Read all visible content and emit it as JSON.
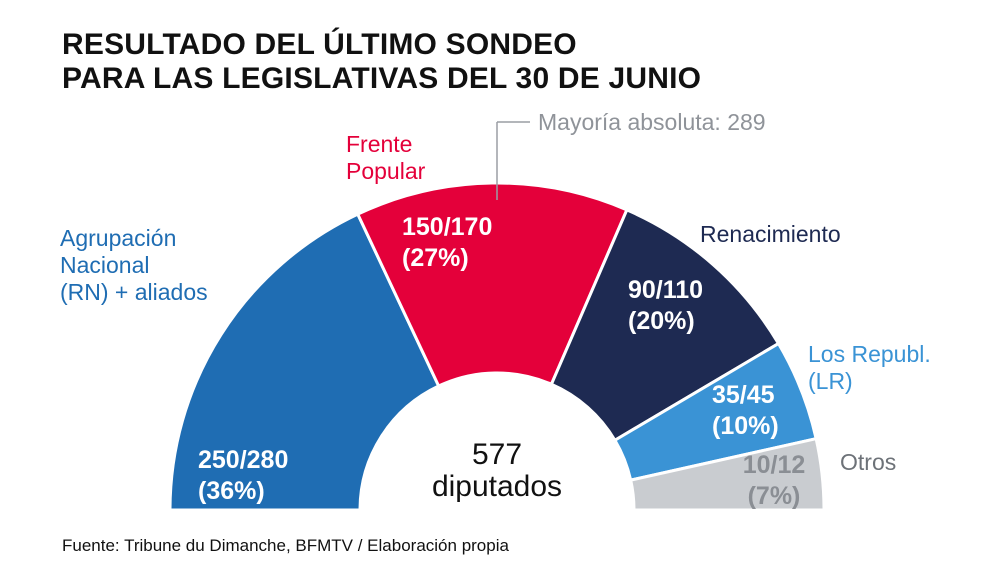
{
  "title_lines": [
    "RESULTADO DEL ÚLTIMO SONDEO",
    "PARA LAS LEGISLATIVAS DEL 30 DE JUNIO"
  ],
  "source": "Fuente: Tribune du Dimanche, BFMTV / Elaboración propia",
  "chart_data": {
    "type": "pie",
    "subtype": "half-donut parliament",
    "title": "RESULTADO DEL ÚLTIMO SONDEO PARA LAS LEGISLATIVAS DEL 30 DE JUNIO",
    "total_seats": 577,
    "center_label": [
      "577",
      "diputados"
    ],
    "majority_label": "Mayoría absoluta: 289",
    "majority_seats": 289,
    "series": [
      {
        "key": "rn",
        "name_lines": [
          "Agrupación",
          "Nacional",
          "(RN) + aliados"
        ],
        "range": "250/280",
        "percent": "(36%)",
        "value": 36,
        "color": "#1f6db3",
        "value_color": "#ffffff",
        "name_color": "#1f6db3"
      },
      {
        "key": "fp",
        "name_lines": [
          "Frente",
          "Popular"
        ],
        "range": "150/170",
        "percent": "(27%)",
        "value": 27,
        "color": "#e4003a",
        "value_color": "#ffffff",
        "name_color": "#e4003a"
      },
      {
        "key": "ren",
        "name_lines": [
          "Renacimiento"
        ],
        "range": "90/110",
        "percent": "(20%)",
        "value": 20,
        "color": "#1e2a52",
        "value_color": "#ffffff",
        "name_color": "#1e2a52"
      },
      {
        "key": "lr",
        "name_lines": [
          "Los Republ.",
          "(LR)"
        ],
        "range": "35/45",
        "percent": "(10%)",
        "value": 10,
        "color": "#3a93d5",
        "value_color": "#ffffff",
        "name_color": "#3a93d5"
      },
      {
        "key": "otros",
        "name_lines": [
          "Otros"
        ],
        "range": "10/12",
        "percent": "(7%)",
        "value": 7,
        "color": "#c9ccd0",
        "value_color": "#8a8e94",
        "name_color": "#6d7278"
      }
    ]
  }
}
